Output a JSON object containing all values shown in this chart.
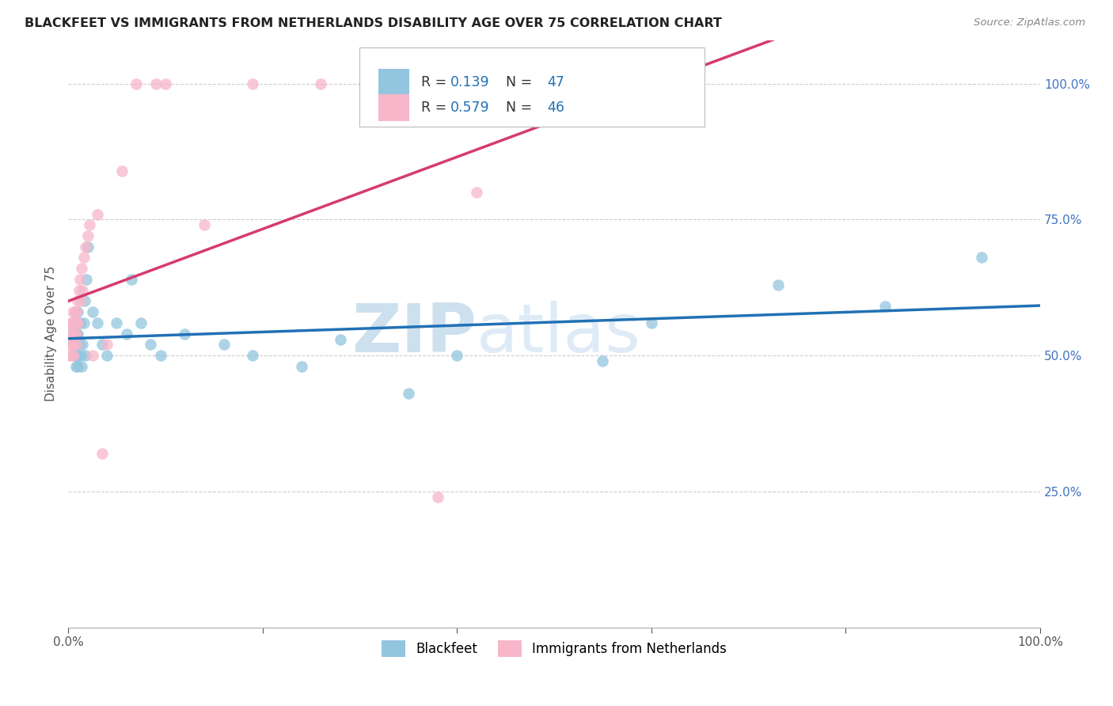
{
  "title": "BLACKFEET VS IMMIGRANTS FROM NETHERLANDS DISABILITY AGE OVER 75 CORRELATION CHART",
  "source": "Source: ZipAtlas.com",
  "ylabel": "Disability Age Over 75",
  "legend_label_blue": "Blackfeet",
  "legend_label_pink": "Immigrants from Netherlands",
  "r_blue": "0.139",
  "n_blue": "47",
  "r_pink": "0.579",
  "n_pink": "46",
  "blue_color": "#92c5de",
  "pink_color": "#f7b6c9",
  "blue_line_color": "#2171b5",
  "pink_line_color": "#d63b6e",
  "watermark_zip": "ZIP",
  "watermark_atlas": "atlas",
  "xlim": [
    0.0,
    1.0
  ],
  "ylim": [
    0.0,
    1.08
  ],
  "blue_x": [
    0.004,
    0.005,
    0.006,
    0.007,
    0.007,
    0.008,
    0.008,
    0.008,
    0.009,
    0.009,
    0.01,
    0.01,
    0.01,
    0.01,
    0.01,
    0.011,
    0.012,
    0.013,
    0.014,
    0.015,
    0.016,
    0.017,
    0.018,
    0.019,
    0.02,
    0.025,
    0.03,
    0.035,
    0.04,
    0.05,
    0.06,
    0.065,
    0.075,
    0.085,
    0.095,
    0.12,
    0.16,
    0.19,
    0.24,
    0.28,
    0.35,
    0.4,
    0.55,
    0.6,
    0.73,
    0.84,
    0.94
  ],
  "blue_y": [
    0.55,
    0.52,
    0.52,
    0.54,
    0.5,
    0.52,
    0.5,
    0.48,
    0.54,
    0.5,
    0.58,
    0.56,
    0.54,
    0.5,
    0.48,
    0.52,
    0.56,
    0.5,
    0.48,
    0.52,
    0.56,
    0.6,
    0.5,
    0.64,
    0.7,
    0.58,
    0.56,
    0.52,
    0.5,
    0.56,
    0.54,
    0.64,
    0.56,
    0.52,
    0.5,
    0.54,
    0.52,
    0.5,
    0.48,
    0.53,
    0.43,
    0.5,
    0.49,
    0.56,
    0.63,
    0.59,
    0.68
  ],
  "pink_x": [
    0.001,
    0.002,
    0.002,
    0.003,
    0.003,
    0.003,
    0.004,
    0.004,
    0.005,
    0.005,
    0.005,
    0.006,
    0.006,
    0.006,
    0.007,
    0.007,
    0.007,
    0.008,
    0.008,
    0.009,
    0.009,
    0.01,
    0.01,
    0.011,
    0.012,
    0.013,
    0.014,
    0.015,
    0.016,
    0.018,
    0.02,
    0.022,
    0.025,
    0.03,
    0.035,
    0.04,
    0.055,
    0.07,
    0.09,
    0.1,
    0.14,
    0.19,
    0.26,
    0.34,
    0.38,
    0.42
  ],
  "pink_y": [
    0.5,
    0.54,
    0.52,
    0.56,
    0.54,
    0.5,
    0.56,
    0.52,
    0.58,
    0.56,
    0.52,
    0.56,
    0.52,
    0.5,
    0.58,
    0.56,
    0.54,
    0.58,
    0.54,
    0.56,
    0.52,
    0.6,
    0.56,
    0.62,
    0.64,
    0.6,
    0.66,
    0.62,
    0.68,
    0.7,
    0.72,
    0.74,
    0.5,
    0.76,
    0.32,
    0.52,
    0.84,
    1.0,
    1.0,
    1.0,
    0.74,
    1.0,
    1.0,
    1.0,
    0.24,
    0.8
  ]
}
